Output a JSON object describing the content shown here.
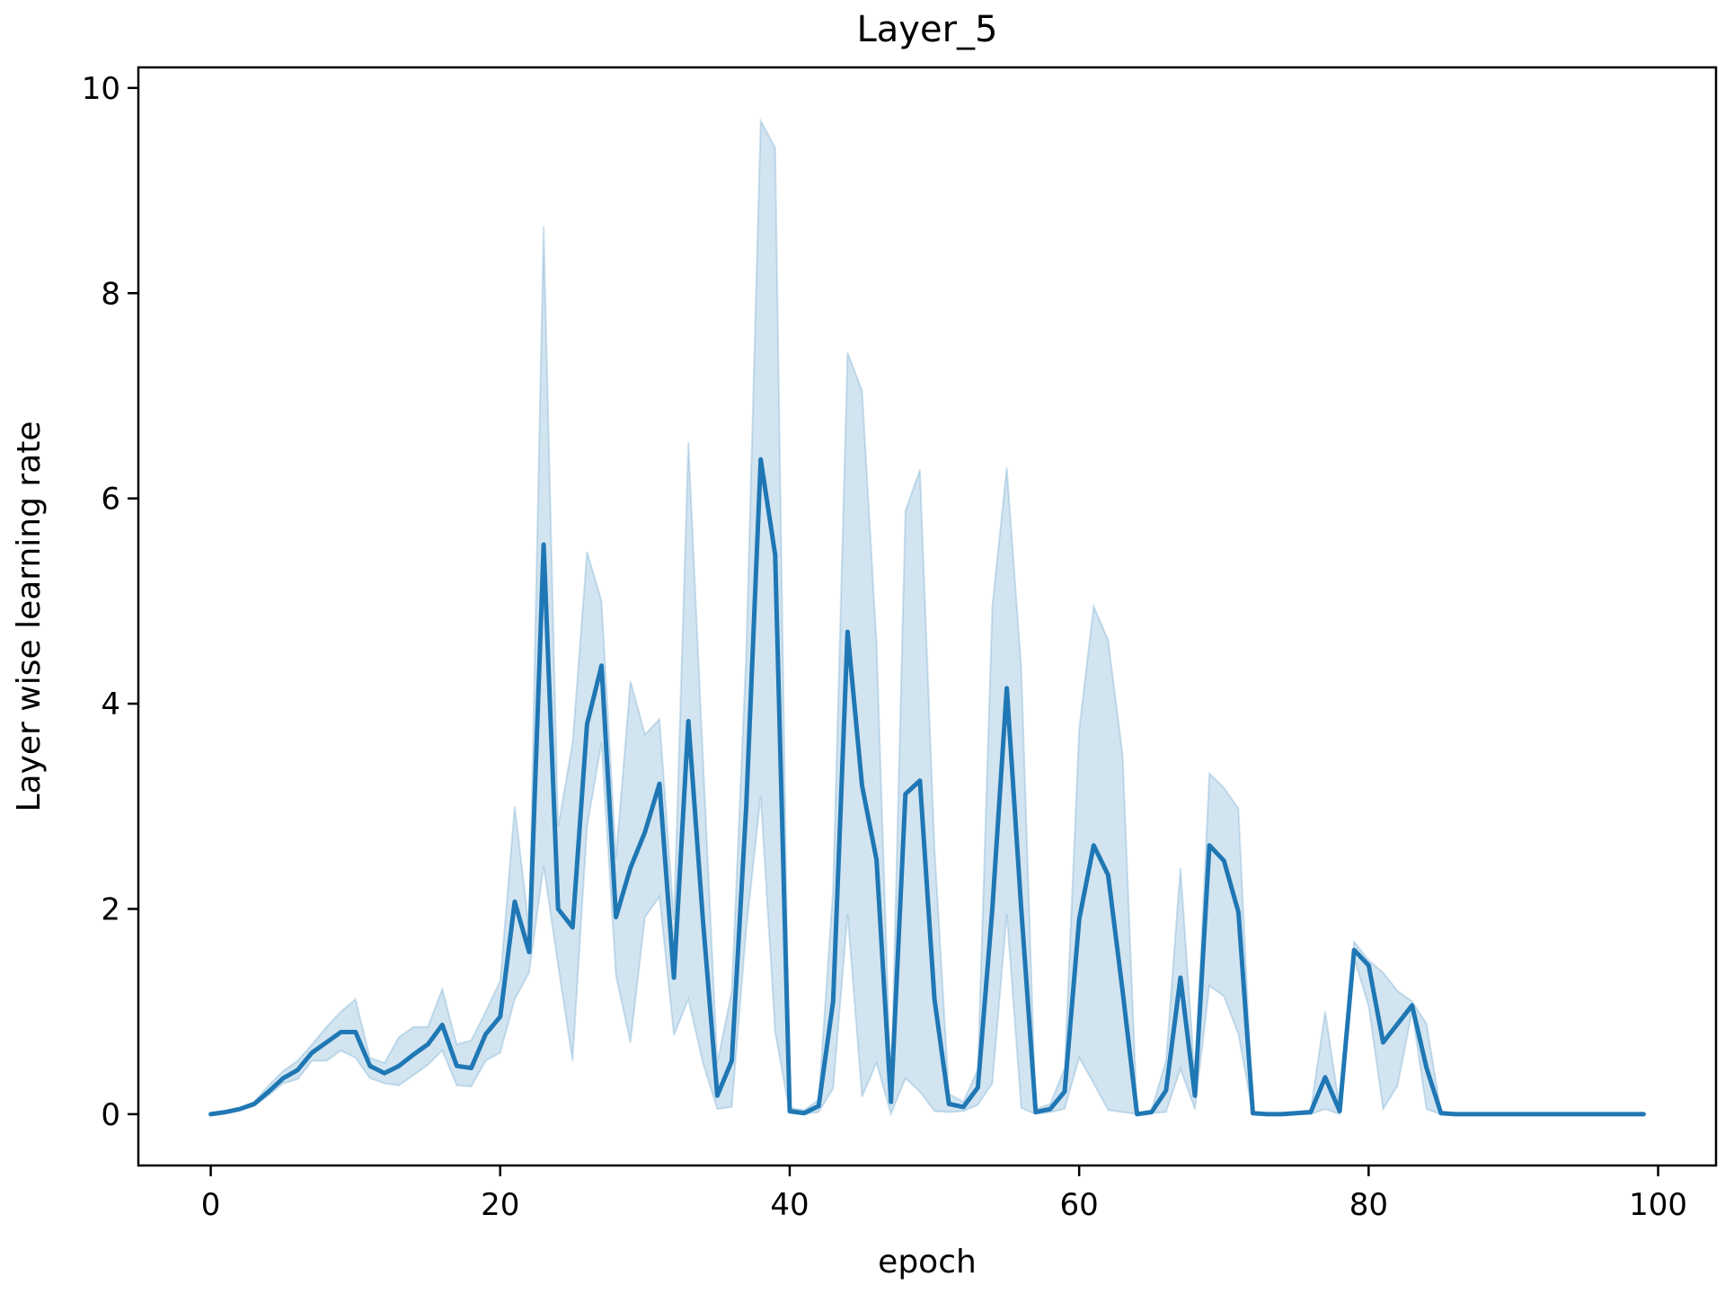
{
  "chart_data": {
    "type": "line",
    "title": "Layer_5",
    "xlabel": "epoch",
    "ylabel": "Layer wise learning rate",
    "xlim": [
      -5,
      104
    ],
    "ylim": [
      -0.5,
      10.2
    ],
    "xticks": [
      0,
      20,
      40,
      60,
      80,
      100
    ],
    "yticks": [
      0,
      2,
      4,
      6,
      8,
      10
    ],
    "grid": false,
    "legend": "none",
    "line_color": "#1f77b4",
    "band_color": "#1f77b4",
    "series": [
      {
        "x": [
          0,
          1,
          2,
          3,
          4,
          5,
          6,
          7,
          8,
          9,
          10,
          11,
          12,
          13,
          14,
          15,
          16,
          17,
          18,
          19,
          20,
          21,
          22,
          23,
          24,
          25,
          26,
          27,
          28,
          29,
          30,
          31,
          32,
          33,
          34,
          35,
          36,
          37,
          38,
          39,
          40,
          41,
          42,
          43,
          44,
          45,
          46,
          47,
          48,
          49,
          50,
          51,
          52,
          53,
          54,
          55,
          56,
          57,
          58,
          59,
          60,
          61,
          62,
          63,
          64,
          65,
          66,
          67,
          68,
          69,
          70,
          71,
          72,
          73,
          74,
          75,
          76,
          77,
          78,
          79,
          80,
          81,
          82,
          83,
          84,
          85,
          86,
          87,
          88,
          89,
          90,
          91,
          92,
          93,
          94,
          95,
          96,
          97,
          98,
          99
        ],
        "y": [
          0.0,
          0.02,
          0.05,
          0.1,
          0.22,
          0.35,
          0.43,
          0.6,
          0.7,
          0.8,
          0.8,
          0.47,
          0.4,
          0.47,
          0.58,
          0.68,
          0.87,
          0.47,
          0.45,
          0.78,
          0.95,
          2.07,
          1.58,
          5.55,
          2.0,
          1.82,
          3.8,
          4.37,
          1.92,
          2.4,
          2.75,
          3.22,
          1.33,
          3.83,
          1.9,
          0.18,
          0.52,
          3.0,
          6.38,
          5.45,
          0.03,
          0.01,
          0.08,
          1.1,
          4.7,
          3.2,
          2.48,
          0.12,
          3.12,
          3.25,
          1.12,
          0.1,
          0.07,
          0.26,
          2.0,
          4.15,
          2.0,
          0.02,
          0.05,
          0.22,
          1.9,
          2.62,
          2.33,
          1.2,
          0.0,
          0.02,
          0.23,
          1.33,
          0.18,
          2.62,
          2.47,
          1.97,
          0.01,
          0.0,
          0.0,
          0.01,
          0.02,
          0.36,
          0.03,
          1.6,
          1.45,
          0.7,
          0.88,
          1.06,
          0.45,
          0.01,
          0.0,
          0.0,
          0.0,
          0.0,
          0.0,
          0.0,
          0.0,
          0.0,
          0.0,
          0.0,
          0.0,
          0.0,
          0.0,
          0.0
        ],
        "y_lower": [
          0.0,
          0.01,
          0.04,
          0.08,
          0.18,
          0.3,
          0.34,
          0.52,
          0.52,
          0.62,
          0.55,
          0.35,
          0.3,
          0.28,
          0.38,
          0.48,
          0.62,
          0.28,
          0.27,
          0.52,
          0.6,
          1.12,
          1.38,
          2.42,
          1.45,
          0.52,
          2.8,
          3.62,
          1.35,
          0.7,
          1.92,
          2.12,
          0.77,
          1.12,
          0.5,
          0.05,
          0.07,
          1.8,
          3.1,
          0.8,
          0.01,
          0.0,
          0.02,
          0.25,
          1.95,
          0.17,
          0.5,
          0.0,
          0.35,
          0.22,
          0.03,
          0.02,
          0.03,
          0.09,
          0.3,
          1.95,
          0.06,
          0.0,
          0.02,
          0.05,
          0.55,
          0.3,
          0.04,
          0.02,
          0.0,
          0.01,
          0.02,
          0.44,
          0.05,
          1.25,
          1.15,
          0.78,
          0.0,
          0.0,
          0.0,
          0.0,
          0.0,
          0.05,
          0.0,
          1.52,
          1.05,
          0.05,
          0.28,
          1.0,
          0.05,
          0.0,
          0.0,
          0.0,
          0.0,
          0.0,
          0.0,
          0.0,
          0.0,
          0.0,
          0.0,
          0.0,
          0.0,
          0.0,
          0.0,
          0.0
        ],
        "y_upper": [
          0.0,
          0.03,
          0.06,
          0.12,
          0.28,
          0.42,
          0.52,
          0.68,
          0.85,
          1.0,
          1.12,
          0.55,
          0.5,
          0.75,
          0.85,
          0.85,
          1.22,
          0.68,
          0.72,
          1.0,
          1.3,
          3.0,
          1.8,
          8.65,
          2.8,
          3.62,
          5.48,
          5.0,
          2.5,
          4.22,
          3.7,
          3.85,
          1.9,
          6.55,
          3.5,
          0.5,
          1.2,
          4.5,
          9.68,
          9.42,
          0.06,
          0.04,
          0.14,
          2.2,
          7.42,
          7.05,
          4.6,
          0.25,
          5.88,
          6.28,
          2.6,
          0.2,
          0.12,
          0.44,
          4.95,
          6.3,
          4.35,
          0.05,
          0.1,
          0.45,
          3.75,
          4.95,
          4.62,
          3.5,
          0.01,
          0.04,
          0.52,
          2.4,
          0.35,
          3.32,
          3.18,
          2.98,
          0.02,
          0.01,
          0.01,
          0.02,
          0.04,
          1.0,
          0.06,
          1.68,
          1.5,
          1.38,
          1.2,
          1.1,
          0.88,
          0.02,
          0.0,
          0.0,
          0.0,
          0.0,
          0.0,
          0.0,
          0.0,
          0.0,
          0.0,
          0.0,
          0.0,
          0.0,
          0.0,
          0.0
        ]
      }
    ]
  }
}
